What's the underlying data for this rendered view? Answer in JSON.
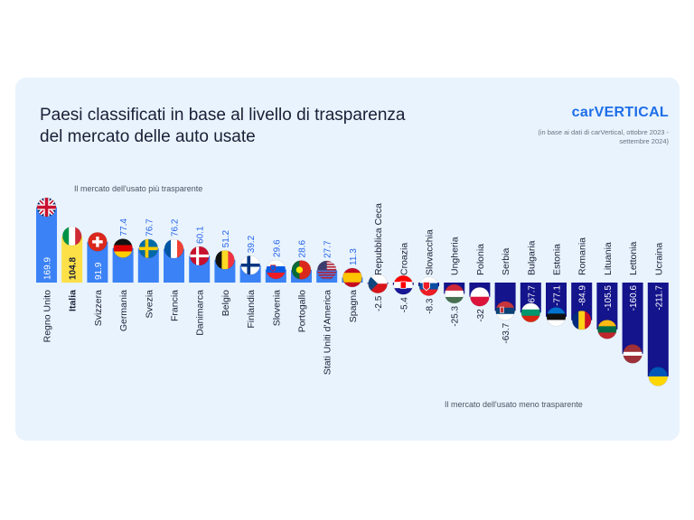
{
  "title": "Paesi classificati in base al livello di trasparenza del mercato delle auto usate",
  "brand": "carVERTICAL",
  "source_note": "(in base ai dati di carVertical, ottobre 2023 - settembre 2024)",
  "note_most": "Il mercato dell'usato più trasparente",
  "note_least": "Il mercato dell'usato meno trasparente",
  "colors": {
    "positive": "#3b82f6",
    "highlight": "#fde047",
    "negative": "#14148c",
    "background": "#e8f3fd"
  },
  "chart_data": {
    "type": "bar",
    "title": "Paesi classificati in base al livello di trasparenza del mercato delle auto usate",
    "categories": [
      "Regno Unito",
      "Italia",
      "Svizzera",
      "Germania",
      "Svezia",
      "Francia",
      "Danimarca",
      "Belgio",
      "Finlandia",
      "Slovenia",
      "Portogallo",
      "Stati Uniti d'America",
      "Spagna",
      "Repubblica Ceca",
      "Croazia",
      "Slovacchia",
      "Ungheria",
      "Polonia",
      "Serbia",
      "Bulgaria",
      "Estonia",
      "Romania",
      "Lituania",
      "Lettonia",
      "Ucraina"
    ],
    "values": [
      169.9,
      104.8,
      91.9,
      77.4,
      76.7,
      76.2,
      60.1,
      51.2,
      39.2,
      29.6,
      28.6,
      27.7,
      11.3,
      -2.5,
      -5.4,
      -8.3,
      -25.3,
      -32,
      -63.7,
      -67.7,
      -77.1,
      -84.9,
      -105.5,
      -160.6,
      -211.7
    ],
    "labels": [
      "169.9",
      "104.8",
      "91.9",
      "77.4",
      "76.7",
      "76.2",
      "60.1",
      "51.2",
      "39.2",
      "29.6",
      "28.6",
      "27.7",
      "11.3",
      "-2.5",
      "-5.4",
      "-8.3",
      "-25.3",
      "-32",
      "-63.7",
      "-67.7",
      "-77.1",
      "-84.9",
      "-105.5",
      "-160.6",
      "-211.7"
    ],
    "highlight": "Italia",
    "flags": [
      "uk",
      "italy",
      "switzerland",
      "germany",
      "sweden",
      "france",
      "denmark",
      "belgium",
      "finland",
      "slovenia",
      "portugal",
      "usa",
      "spain",
      "czechia",
      "croatia",
      "slovakia",
      "hungary",
      "poland",
      "serbia",
      "bulgaria",
      "estonia",
      "romania",
      "lithuania",
      "latvia",
      "ukraine"
    ],
    "xlabel": "",
    "ylabel": "",
    "grid": false,
    "legend": "none"
  }
}
